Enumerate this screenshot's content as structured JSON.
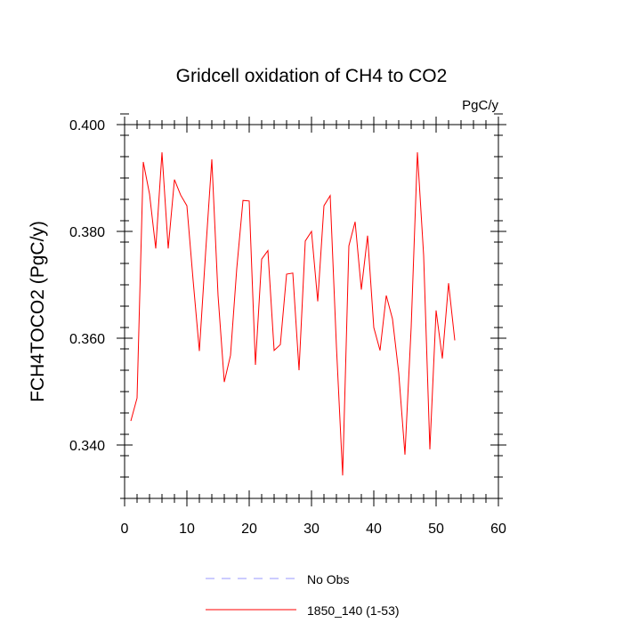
{
  "chart_data": {
    "type": "line",
    "title": "Gridcell oxidation of CH4 to CO2",
    "units": "PgC/y",
    "xlabel": "",
    "ylabel": "FCH4TOCO2  (PgC/y)",
    "xlim": [
      0,
      60
    ],
    "ylim": [
      0.33,
      0.4
    ],
    "x_ticks": [
      0,
      10,
      20,
      30,
      40,
      50,
      60
    ],
    "x_tick_labels": [
      "0",
      "10",
      "20",
      "30",
      "40",
      "50",
      "60"
    ],
    "y_ticks": [
      0.34,
      0.36,
      0.38,
      0.4
    ],
    "y_tick_labels": [
      "0.340",
      "0.360",
      "0.380",
      "0.400"
    ],
    "x_minor_step": 2,
    "y_minor_step": 0.004,
    "series": [
      {
        "name": "1850_140 (1-53)",
        "color": "#ff0000",
        "dash": "solid",
        "x": [
          1,
          2,
          3,
          4,
          5,
          6,
          7,
          8,
          9,
          10,
          11,
          12,
          13,
          14,
          15,
          16,
          17,
          18,
          19,
          20,
          21,
          22,
          23,
          24,
          25,
          26,
          27,
          28,
          29,
          30,
          31,
          32,
          33,
          34,
          35,
          36,
          37,
          38,
          39,
          40,
          41,
          42,
          43,
          44,
          45,
          46,
          47,
          48,
          49,
          50,
          51,
          52,
          53
        ],
        "values": [
          0.3445,
          0.3488,
          0.393,
          0.387,
          0.3768,
          0.3948,
          0.3768,
          0.3897,
          0.3868,
          0.3848,
          0.3708,
          0.3576,
          0.376,
          0.3935,
          0.368,
          0.3518,
          0.3568,
          0.373,
          0.3858,
          0.3857,
          0.355,
          0.3748,
          0.3764,
          0.3577,
          0.3588,
          0.372,
          0.3722,
          0.354,
          0.3782,
          0.38,
          0.3669,
          0.3848,
          0.3867,
          0.3585,
          0.3343,
          0.3773,
          0.3818,
          0.3691,
          0.3792,
          0.362,
          0.3577,
          0.368,
          0.3636,
          0.3535,
          0.3382,
          0.3621,
          0.3948,
          0.3755,
          0.3392,
          0.3652,
          0.3562,
          0.3703,
          0.3596
        ]
      },
      {
        "name": "No Obs",
        "color": "#9999ff",
        "dash": "dashed",
        "x": [],
        "values": []
      }
    ],
    "legend": {
      "position": "bottom",
      "entries": [
        {
          "label": "No Obs",
          "color": "#9999ff",
          "dash": "dashed"
        },
        {
          "label": "1850_140 (1-53)",
          "color": "#ff0000",
          "dash": "solid"
        }
      ]
    }
  }
}
